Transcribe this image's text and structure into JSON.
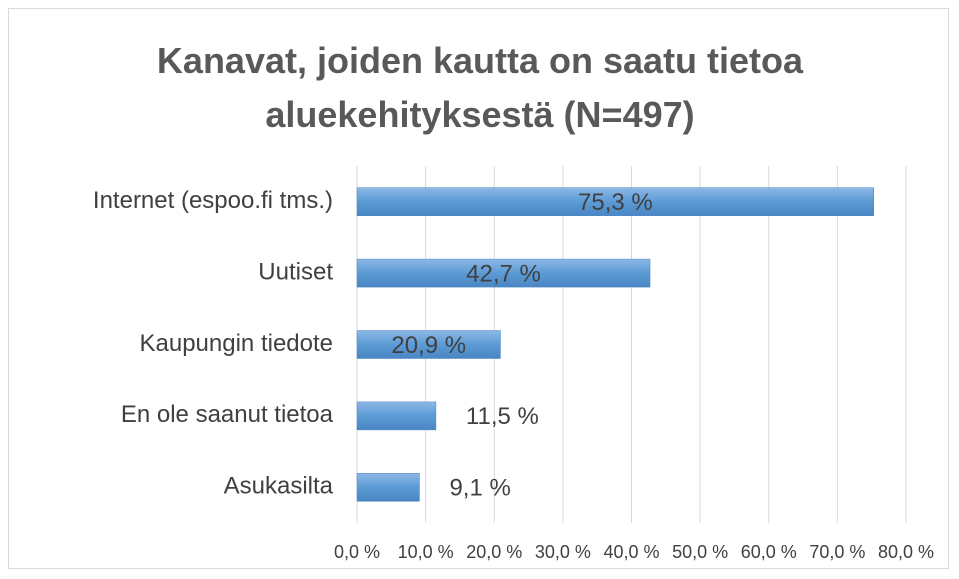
{
  "chart_data": {
    "type": "bar",
    "orientation": "horizontal",
    "title": "Kanavat, joiden kautta on saatu tietoa aluekehityksestä (N=497)",
    "categories": [
      "Internet (espoo.fi tms.)",
      "Uutiset",
      "Kaupungin tiedote",
      "En ole saanut tietoa",
      "Asukasilta"
    ],
    "values": [
      75.3,
      42.7,
      20.9,
      11.5,
      9.1
    ],
    "value_labels": [
      "75,3 %",
      "42,7 %",
      "20,9 %",
      "11,5 %",
      "9,1 %"
    ],
    "color": "#5b9bd5",
    "xlim": [
      0,
      80
    ],
    "xticks": [
      {
        "value": 0,
        "label": "0,0 %"
      },
      {
        "value": 10,
        "label": "10,0 %"
      },
      {
        "value": 20,
        "label": "20,0 %"
      },
      {
        "value": 30,
        "label": "30,0 %"
      },
      {
        "value": 40,
        "label": "40,0 %"
      },
      {
        "value": 50,
        "label": "50,0 %"
      },
      {
        "value": 60,
        "label": "60,0 %"
      },
      {
        "value": 70,
        "label": "70,0 %"
      },
      {
        "value": 80,
        "label": "80,0 %"
      }
    ],
    "grid": true
  }
}
